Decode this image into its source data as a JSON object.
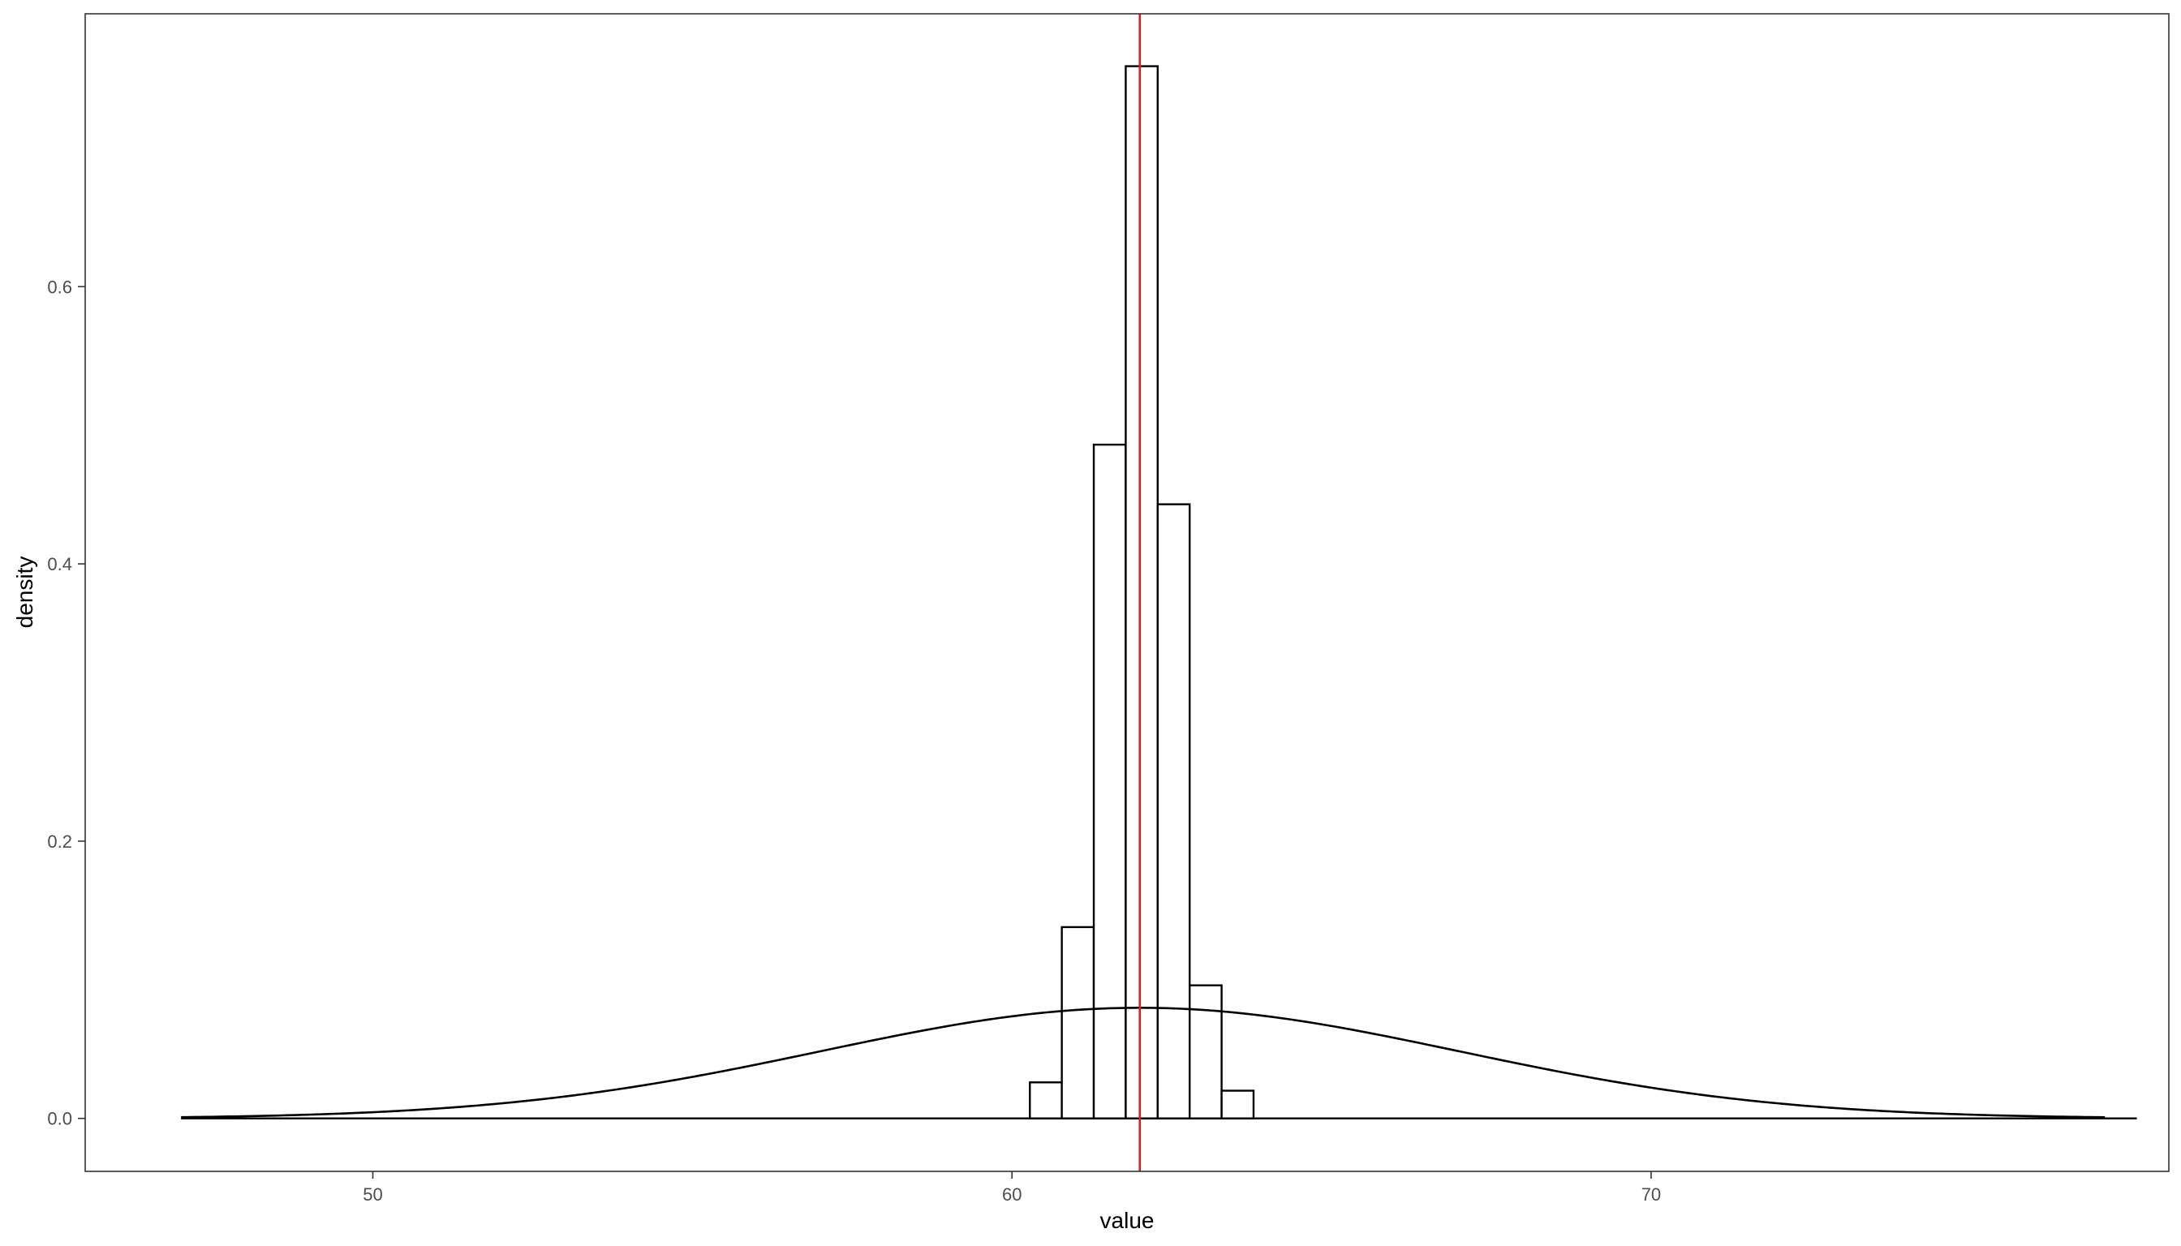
{
  "chart_data": {
    "type": "bar",
    "xlabel": "value",
    "ylabel": "density",
    "xlim": [
      45.5,
      78.1
    ],
    "ylim": [
      -0.0382,
      0.7968
    ],
    "x_ticks": [
      50,
      60,
      70
    ],
    "y_ticks": [
      0.0,
      0.2,
      0.4,
      0.6
    ],
    "x_tick_labels": [
      "50",
      "60",
      "70"
    ],
    "y_tick_labels": [
      "0.0",
      "0.2",
      "0.4",
      "0.6"
    ],
    "grid": false,
    "histogram": {
      "bin_width": 0.5,
      "bins": [
        {
          "x0": 60.28,
          "x1": 60.78,
          "density": 0.026
        },
        {
          "x0": 60.78,
          "x1": 61.28,
          "density": 0.138
        },
        {
          "x0": 61.28,
          "x1": 61.78,
          "density": 0.486
        },
        {
          "x0": 61.78,
          "x1": 62.28,
          "density": 0.759
        },
        {
          "x0": 62.28,
          "x1": 62.78,
          "density": 0.443
        },
        {
          "x0": 62.78,
          "x1": 63.28,
          "density": 0.096
        },
        {
          "x0": 63.28,
          "x1": 63.78,
          "density": 0.02
        }
      ],
      "baseline_range": [
        47.0,
        77.6
      ]
    },
    "normal_curve": {
      "mean": 62.0,
      "sd": 5.0,
      "x_range": [
        47.0,
        77.1
      ]
    },
    "vline": {
      "x": 62.0,
      "color": "#e41a1c"
    },
    "colors": {
      "bars_stroke": "#000000",
      "bars_fill": "#ffffff",
      "curve": "#000000",
      "panel_border": "#333333"
    }
  }
}
